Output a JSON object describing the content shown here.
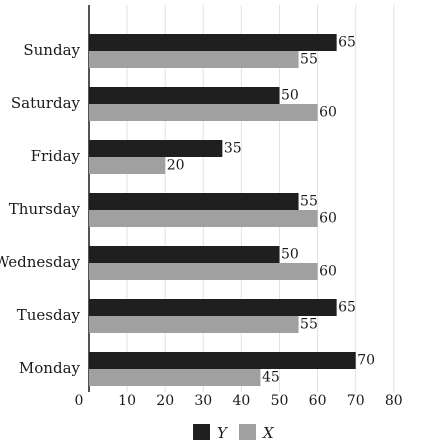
{
  "chart_data": {
    "type": "bar",
    "orientation": "horizontal",
    "categories": [
      "Sunday",
      "Saturday",
      "Friday",
      "Thursday",
      "Wednesday",
      "Tuesday",
      "Monday"
    ],
    "series": [
      {
        "name": "Y",
        "color": "#1f1f1f",
        "values": [
          65,
          50,
          35,
          55,
          50,
          65,
          70
        ]
      },
      {
        "name": "X",
        "color": "#a0a0a0",
        "values": [
          55,
          60,
          20,
          60,
          60,
          55,
          45
        ]
      }
    ],
    "xlim": [
      0,
      80
    ],
    "xticks": [
      0,
      10,
      20,
      30,
      40,
      50,
      60,
      70,
      80
    ],
    "grid": "vertical",
    "legend": "bottom",
    "title": "",
    "xlabel": "",
    "ylabel": ""
  }
}
